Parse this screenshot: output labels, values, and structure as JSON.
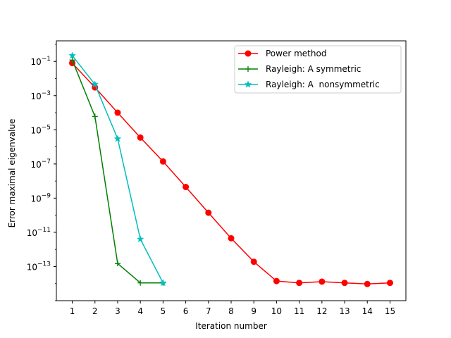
{
  "chart_data": {
    "type": "line",
    "xlabel": "Iteration number",
    "ylabel": "Error maximal eigenvalue",
    "xlim": [
      0.3,
      15.7
    ],
    "ylim": [
      1e-15,
      1.6
    ],
    "y_scale": "log",
    "x_ticks": [
      1,
      2,
      3,
      4,
      5,
      6,
      7,
      8,
      9,
      10,
      11,
      12,
      13,
      14,
      15
    ],
    "y_ticks": [
      {
        "value": 0.1,
        "label_base": "10",
        "label_exp": "−1"
      },
      {
        "value": 0.001,
        "label_base": "10",
        "label_exp": "−3"
      },
      {
        "value": 1e-05,
        "label_base": "10",
        "label_exp": "−5"
      },
      {
        "value": 1e-07,
        "label_base": "10",
        "label_exp": "−7"
      },
      {
        "value": 1e-09,
        "label_base": "10",
        "label_exp": "−9"
      },
      {
        "value": 1e-11,
        "label_base": "10",
        "label_exp": "−11"
      },
      {
        "value": 1e-13,
        "label_base": "10",
        "label_exp": "−13"
      }
    ],
    "grid": false,
    "legend_position": "top-right",
    "series": [
      {
        "name": "Power method",
        "color": "#ff0000",
        "marker": "circle",
        "x": [
          1,
          2,
          3,
          4,
          5,
          6,
          7,
          8,
          9,
          10,
          11,
          12,
          13,
          14,
          15
        ],
        "y": [
          0.08,
          0.003,
          0.0001,
          3.5e-06,
          1.4e-07,
          4.5e-09,
          1.4e-10,
          4.5e-12,
          1.9e-13,
          1.4e-14,
          1.1e-14,
          1.3e-14,
          1.1e-14,
          9.5e-15,
          1.1e-14
        ]
      },
      {
        "name": "Rayleigh: A symmetric",
        "color": "#008000",
        "marker": "plus",
        "x": [
          1,
          2,
          3,
          4,
          5
        ],
        "y": [
          0.12,
          6e-05,
          1.5e-13,
          1.1e-14,
          1.1e-14
        ]
      },
      {
        "name": "Rayleigh: A  nonsymmetric",
        "color": "#00bfbf",
        "marker": "star",
        "x": [
          1,
          2,
          3,
          4,
          5
        ],
        "y": [
          0.22,
          0.0045,
          3e-06,
          4e-12,
          1.1e-14
        ]
      }
    ]
  }
}
